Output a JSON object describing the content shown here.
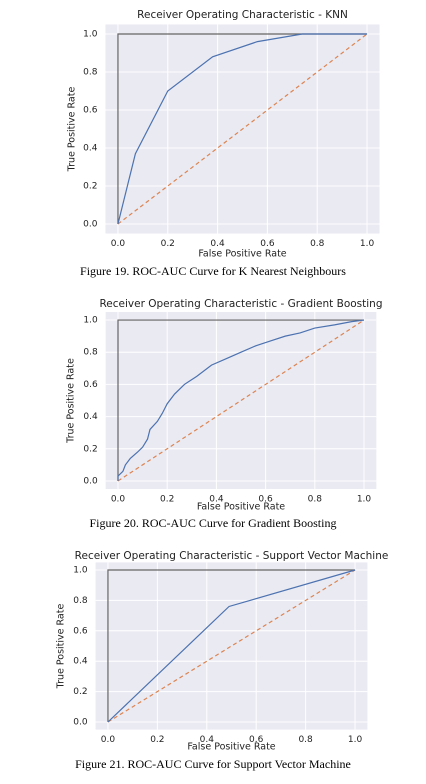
{
  "chart_data": [
    {
      "type": "line",
      "title": "Receiver Operating Characteristic - KNN",
      "xlabel": "False Positive Rate",
      "ylabel": "True Positive Rate",
      "caption": "Figure 19. ROC-AUC Curve for K Nearest Neighbours",
      "xlim": [
        -0.05,
        1.05
      ],
      "ylim": [
        -0.05,
        1.05
      ],
      "grid": true,
      "background": "#eaeaf2",
      "xticks": [
        {
          "value": 0,
          "label": "0.0"
        },
        {
          "value": 0.2,
          "label": "0.2"
        },
        {
          "value": 0.4,
          "label": "0.4"
        },
        {
          "value": 0.6,
          "label": "0.6"
        },
        {
          "value": 0.8,
          "label": "0.8"
        },
        {
          "value": 1,
          "label": "1.0"
        }
      ],
      "yticks": [
        {
          "value": 0,
          "label": "0.0"
        },
        {
          "value": 0.2,
          "label": "0.2"
        },
        {
          "value": 0.4,
          "label": "0.4"
        },
        {
          "value": 0.6,
          "label": "0.6"
        },
        {
          "value": 0.8,
          "label": "0.8"
        },
        {
          "value": 1,
          "label": "1.0"
        }
      ],
      "series": [
        {
          "color": "#4c72b0",
          "x": [
            0,
            0.07,
            0.2,
            0.38,
            0.56,
            0.74,
            1
          ],
          "values": [
            0,
            0.37,
            0.7,
            0.88,
            0.96,
            1,
            1
          ]
        },
        {
          "color": "#dd8452",
          "dashed": true,
          "x": [
            0,
            1
          ],
          "values": [
            0,
            1
          ]
        },
        {
          "color": "#666666",
          "x": [
            0,
            0,
            1
          ],
          "values": [
            0,
            1,
            1
          ]
        }
      ]
    },
    {
      "type": "line",
      "title": "Receiver Operating Characteristic - Gradient Boosting",
      "xlabel": "False Positive Rate",
      "ylabel": "True Positive Rate",
      "caption": "Figure 20. ROC-AUC Curve for Gradient Boosting",
      "xlim": [
        -0.05,
        1.05
      ],
      "ylim": [
        -0.05,
        1.05
      ],
      "grid": true,
      "background": "#eaeaf2",
      "xticks": [
        {
          "value": 0,
          "label": "0.0"
        },
        {
          "value": 0.2,
          "label": "0.2"
        },
        {
          "value": 0.4,
          "label": "0.4"
        },
        {
          "value": 0.6,
          "label": "0.6"
        },
        {
          "value": 0.8,
          "label": "0.8"
        },
        {
          "value": 1,
          "label": "1.0"
        }
      ],
      "yticks": [
        {
          "value": 0,
          "label": "0.0"
        },
        {
          "value": 0.2,
          "label": "0.2"
        },
        {
          "value": 0.4,
          "label": "0.4"
        },
        {
          "value": 0.6,
          "label": "0.6"
        },
        {
          "value": 0.8,
          "label": "0.8"
        },
        {
          "value": 1,
          "label": "1.0"
        }
      ],
      "series": [
        {
          "color": "#4c72b0",
          "x": [
            0,
            0,
            0.02,
            0.03,
            0.05,
            0.08,
            0.1,
            0.12,
            0.13,
            0.16,
            0.18,
            0.2,
            0.23,
            0.27,
            0.32,
            0.38,
            0.44,
            0.5,
            0.56,
            0.62,
            0.68,
            0.74,
            0.8,
            0.88,
            0.95,
            1
          ],
          "values": [
            0,
            0.03,
            0.06,
            0.1,
            0.14,
            0.18,
            0.21,
            0.26,
            0.32,
            0.37,
            0.42,
            0.48,
            0.54,
            0.6,
            0.65,
            0.72,
            0.76,
            0.8,
            0.84,
            0.87,
            0.9,
            0.92,
            0.95,
            0.97,
            0.99,
            1
          ]
        },
        {
          "color": "#dd8452",
          "dashed": true,
          "x": [
            0,
            1
          ],
          "values": [
            0,
            1
          ]
        },
        {
          "color": "#666666",
          "x": [
            0,
            0,
            1
          ],
          "values": [
            0,
            1,
            1
          ]
        }
      ]
    },
    {
      "type": "line",
      "title": "Receiver Operating Characteristic - Support Vector Machine",
      "xlabel": "False Positive Rate",
      "ylabel": "True Positive Rate",
      "caption": "Figure 21. ROC-AUC Curve for Support Vector Machine",
      "xlim": [
        -0.05,
        1.05
      ],
      "ylim": [
        -0.05,
        1.05
      ],
      "grid": true,
      "background": "#eaeaf2",
      "xticks": [
        {
          "value": 0,
          "label": "0.0"
        },
        {
          "value": 0.2,
          "label": "0.2"
        },
        {
          "value": 0.4,
          "label": "0.4"
        },
        {
          "value": 0.6,
          "label": "0.6"
        },
        {
          "value": 0.8,
          "label": "0.8"
        },
        {
          "value": 1,
          "label": "1.0"
        }
      ],
      "yticks": [
        {
          "value": 0,
          "label": "0.0"
        },
        {
          "value": 0.2,
          "label": "0.2"
        },
        {
          "value": 0.4,
          "label": "0.4"
        },
        {
          "value": 0.6,
          "label": "0.6"
        },
        {
          "value": 0.8,
          "label": "0.8"
        },
        {
          "value": 1,
          "label": "1.0"
        }
      ],
      "series": [
        {
          "color": "#4c72b0",
          "x": [
            0,
            0.49,
            1
          ],
          "values": [
            0,
            0.76,
            1
          ]
        },
        {
          "color": "#dd8452",
          "dashed": true,
          "x": [
            0,
            1
          ],
          "values": [
            0,
            1
          ]
        },
        {
          "color": "#666666",
          "x": [
            0,
            0,
            1
          ],
          "values": [
            0,
            1,
            1
          ]
        }
      ]
    }
  ]
}
